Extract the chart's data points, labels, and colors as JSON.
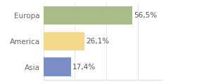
{
  "categories": [
    "Asia",
    "America",
    "Europa"
  ],
  "values": [
    17.4,
    26.1,
    56.5
  ],
  "labels": [
    "17,4%",
    "26,1%",
    "56,5%"
  ],
  "bar_colors": [
    "#7b8ec8",
    "#f5d98b",
    "#a8bc8a"
  ],
  "background_color": "#ffffff",
  "xlim": [
    0,
    75
  ],
  "label_fontsize": 7.5,
  "tick_fontsize": 7.5,
  "bar_height": 0.72
}
